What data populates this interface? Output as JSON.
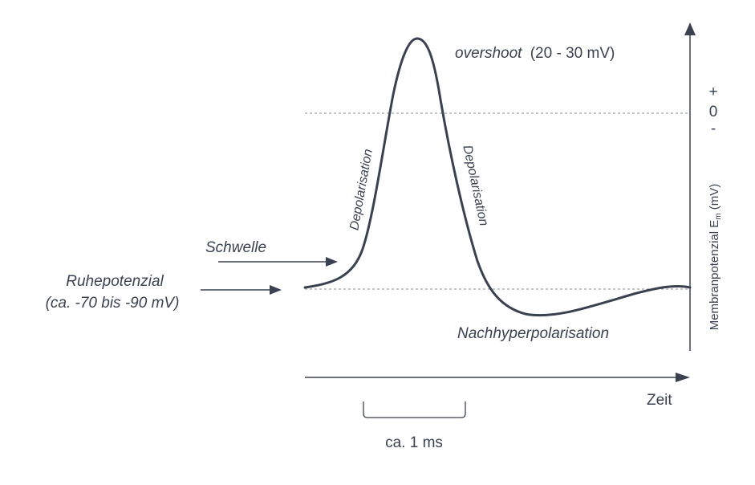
{
  "diagram": {
    "overshoot_italic": "overshoot",
    "overshoot_range": "(20 - 30 mV)",
    "plus_sign": "+",
    "zero_sign": "0",
    "minus_sign": "-",
    "y_axis_label_prefix": "Membranpotenzial E",
    "y_axis_label_sub": "m",
    "y_axis_label_unit": " (mV)",
    "depol_label_left": "Depolarisation",
    "depol_label_right": "Depolarisation",
    "schwelle_label": "Schwelle",
    "ruhe_label_line1": "Ruhepotenzial",
    "ruhe_label_line2": "(ca. -70 bis -90 mV)",
    "nachhyper_label": "Nachhyperpolarisation",
    "x_axis_label": "Zeit",
    "duration_label": "ca. 1 ms"
  },
  "colors": {
    "ink": "#3a4150",
    "dashed": "#8a8f99"
  }
}
